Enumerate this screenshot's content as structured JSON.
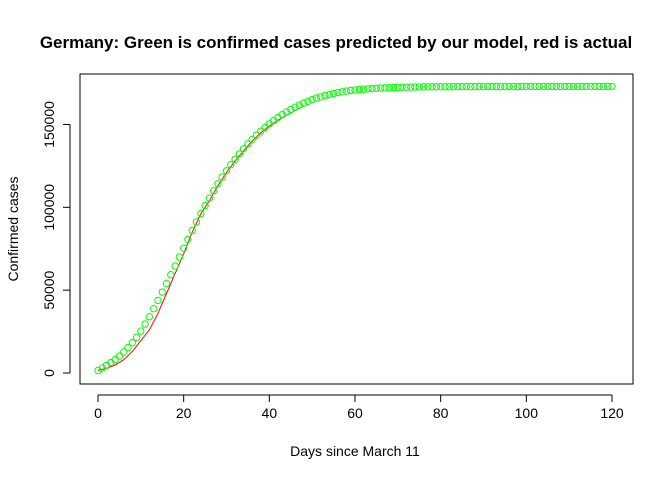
{
  "chart_data": {
    "type": "scatter",
    "title": "Germany: Green is confirmed cases predicted by our model, red is actual",
    "xlabel": "Days since March 11",
    "ylabel": "Confirmed cases",
    "xlim": [
      0,
      120
    ],
    "ylim": [
      0,
      172000
    ],
    "x_ticks": [
      0,
      20,
      40,
      60,
      80,
      100,
      120
    ],
    "y_ticks": [
      0,
      50000,
      100000,
      150000
    ],
    "grid": false,
    "legend": "none",
    "series": [
      {
        "kind": "line",
        "color": "#ff0000",
        "x": [
          0,
          2,
          4,
          6,
          8,
          10,
          12,
          14,
          16,
          18,
          20,
          22,
          24,
          26,
          28,
          30,
          32,
          34,
          36,
          38,
          40,
          42,
          44,
          46,
          48
        ],
        "y": [
          1500,
          2800,
          4800,
          8000,
          13000,
          19500,
          26000,
          36000,
          48000,
          60000,
          72000,
          85000,
          96000,
          104000,
          113000,
          121000,
          128000,
          134000,
          140000,
          145000,
          149000,
          152500,
          155500,
          158500,
          161000
        ]
      },
      {
        "kind": "points",
        "color": "#00ff00",
        "x": [
          0,
          1,
          2,
          3,
          4,
          5,
          6,
          7,
          8,
          9,
          10,
          11,
          12,
          13,
          14,
          15,
          16,
          17,
          18,
          19,
          20,
          21,
          22,
          23,
          24,
          25,
          26,
          27,
          28,
          29,
          30,
          31,
          32,
          33,
          34,
          35,
          36,
          37,
          38,
          39,
          40,
          41,
          42,
          43,
          44,
          45,
          46,
          47,
          48,
          49,
          50,
          51,
          52,
          53,
          54,
          55,
          56,
          57,
          58,
          59,
          60,
          61,
          62,
          63,
          64,
          65,
          66,
          67,
          68,
          69,
          70,
          71,
          72,
          73,
          74,
          75,
          76,
          77,
          78,
          79,
          80,
          81,
          82,
          83,
          84,
          85,
          86,
          87,
          88,
          89,
          90,
          91,
          92,
          93,
          94,
          95,
          96,
          97,
          98,
          99,
          100,
          101,
          102,
          103,
          104,
          105,
          106,
          107,
          108,
          109,
          110,
          111,
          112,
          113,
          114,
          115,
          116,
          117,
          118,
          119,
          120
        ],
        "y": [
          1500,
          3000,
          4600,
          6300,
          8000,
          10200,
          12600,
          15300,
          18300,
          21600,
          25300,
          29500,
          34000,
          38800,
          43800,
          48800,
          54000,
          59300,
          64600,
          70000,
          75300,
          80700,
          86000,
          91200,
          96200,
          101000,
          105500,
          110000,
          114200,
          118200,
          122000,
          125700,
          129000,
          132200,
          135300,
          138200,
          140900,
          143500,
          145900,
          148200,
          150300,
          152300,
          154200,
          155900,
          157500,
          159000,
          160400,
          161700,
          162900,
          164000,
          165000,
          165900,
          166700,
          167400,
          168100,
          168700,
          169200,
          169700,
          170100,
          170500,
          170800,
          171100,
          171300,
          171500,
          171700,
          171900,
          172000,
          172100,
          172200,
          172300,
          172400,
          172450,
          172500,
          172550,
          172600,
          172650,
          172700,
          172720,
          172740,
          172760,
          172780,
          172800,
          172810,
          172820,
          172830,
          172840,
          172850,
          172860,
          172870,
          172880,
          172890,
          172900,
          172905,
          172910,
          172915,
          172920,
          172925,
          172930,
          172935,
          172940,
          172945,
          172950,
          172952,
          172954,
          172956,
          172958,
          172960,
          172962,
          172964,
          172966,
          172968,
          172970,
          172972,
          172974,
          172976,
          172978,
          172980,
          172982,
          172984,
          172986,
          172988
        ]
      }
    ]
  }
}
